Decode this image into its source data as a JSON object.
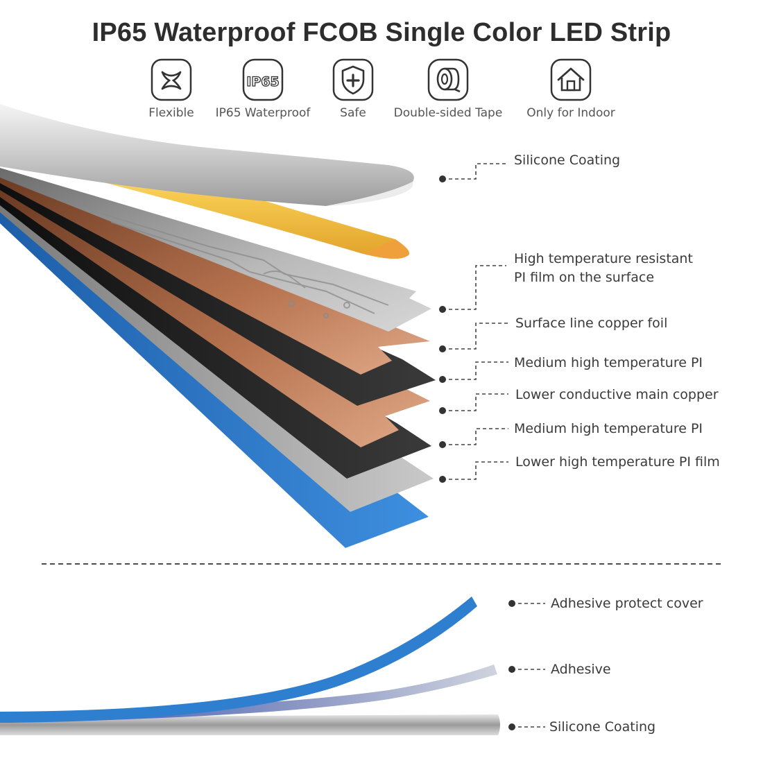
{
  "title": "IP65 Waterproof FCOB Single Color LED Strip",
  "features": [
    {
      "label": "Flexible",
      "icon": "flexible-ribbon-icon"
    },
    {
      "label": "IP65 Waterproof",
      "icon": "ip65-badge-icon"
    },
    {
      "label": "Safe",
      "icon": "shield-plus-icon"
    },
    {
      "label": "Double-sided Tape",
      "icon": "tape-roll-icon"
    },
    {
      "label": "Only for Indoor",
      "icon": "house-icon"
    }
  ],
  "ip65_badge_text": "IP65",
  "layers": {
    "silicone": "Silicone Coating",
    "pi_surface_1": "High temperature resistant",
    "pi_surface_2": "PI film on the surface",
    "surface_copper": "Surface line copper foil",
    "medium_pi_1": "Medium high temperature PI",
    "lower_copper": "Lower conductive main copper",
    "medium_pi_2": "Medium high temperature PI",
    "lower_pi": "Lower high temperature PI film"
  },
  "backing": {
    "adhesive_cover": "Adhesive protect cover",
    "adhesive": "Adhesive",
    "silicone": "Silicone Coating"
  },
  "colors": {
    "blue": "#2f7fd0",
    "copper": "#c98a62",
    "black": "#1d1d1d",
    "silver": "#c8c8c8",
    "phosphor": "#f2b540"
  }
}
